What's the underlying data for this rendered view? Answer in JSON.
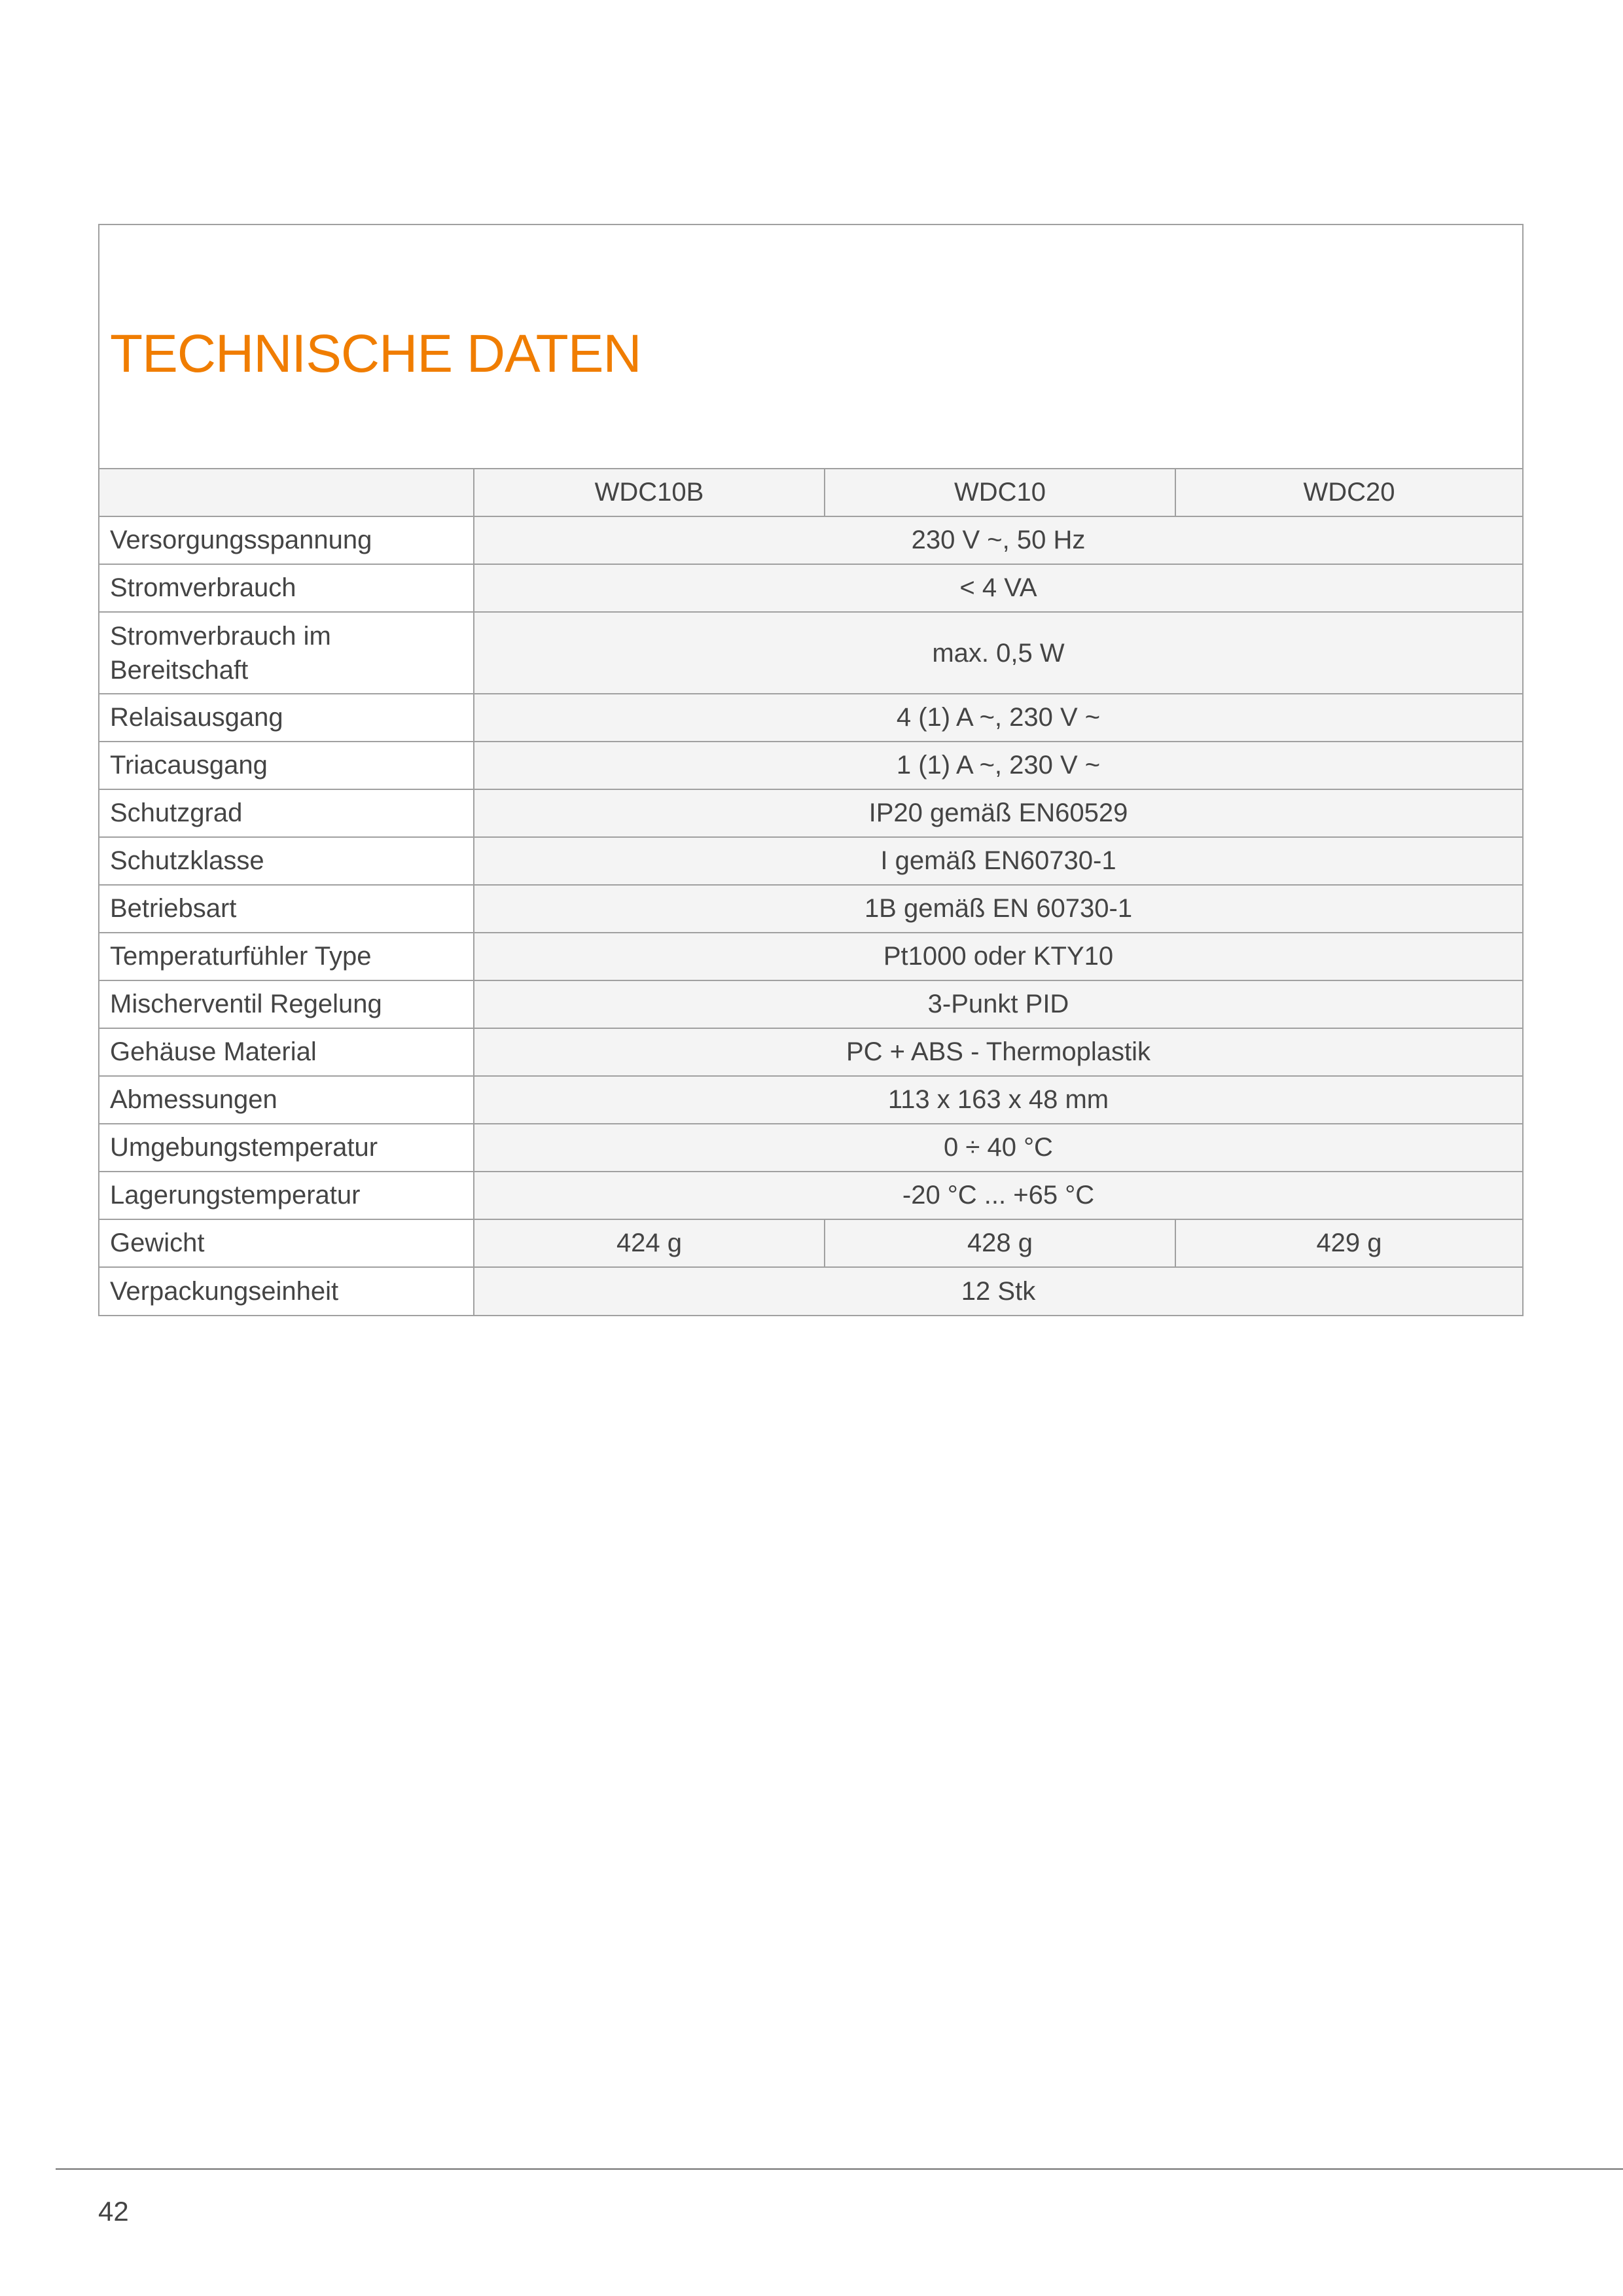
{
  "title": "TECHNISCHE DATEN",
  "columns": [
    "",
    "WDC10B",
    "WDC10",
    "WDC20"
  ],
  "rows": [
    {
      "label": "Versorgungsspannung",
      "value": "230 V ~, 50 Hz"
    },
    {
      "label": "Stromverbrauch",
      "value": "< 4 VA"
    },
    {
      "label": "Stromverbrauch im Bereitschaft",
      "value": "max. 0,5 W"
    },
    {
      "label": "Relaisausgang",
      "value": "4 (1) A ~, 230 V ~"
    },
    {
      "label": "Triacausgang",
      "value": "1 (1) A ~, 230 V ~"
    },
    {
      "label": "Schutzgrad",
      "value": "IP20 gemäß EN60529"
    },
    {
      "label": "Schutzklasse",
      "value": "I gemäß EN60730-1"
    },
    {
      "label": "Betriebsart",
      "value": "1B gemäß EN 60730-1"
    },
    {
      "label": "Temperaturfühler Type",
      "value": "Pt1000 oder KTY10"
    },
    {
      "label": "Mischerventil Regelung",
      "value": "3-Punkt PID"
    },
    {
      "label": "Gehäuse Material",
      "value": "PC + ABS - Thermoplastik"
    },
    {
      "label": "Abmessungen",
      "value": "113 x 163 x 48 mm"
    },
    {
      "label": "Umgebungstemperatur",
      "value": "0 ÷ 40 °C"
    },
    {
      "label": "Lagerungstemperatur",
      "value": "-20 °C ... +65 °C"
    },
    {
      "label": "Gewicht",
      "values": [
        "424 g",
        "428 g",
        "429 g"
      ]
    },
    {
      "label": "Verpackungseinheit",
      "value": "12 Stk"
    }
  ],
  "page_number": "42",
  "colors": {
    "accent": "#f07d00",
    "text": "#444444",
    "cell_bg": "#f4f4f4",
    "border": "#a0a0a0"
  }
}
